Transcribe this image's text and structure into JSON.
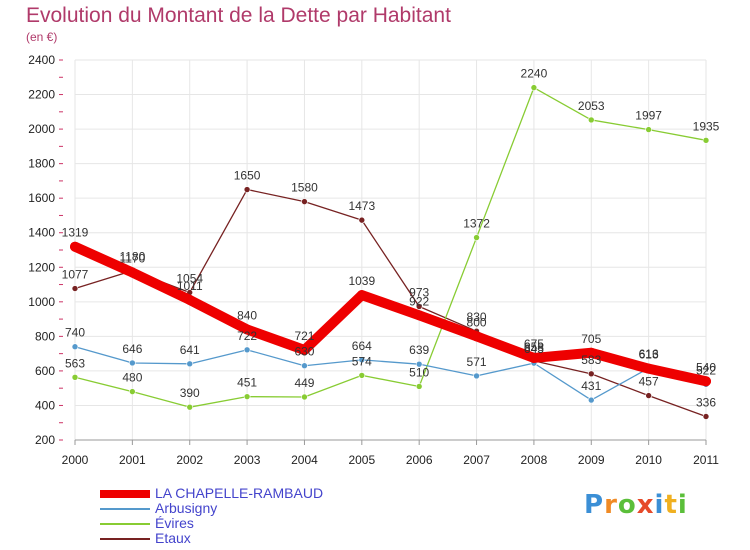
{
  "header": {
    "title": "Evolution du Montant de la Dette par Habitant",
    "subtitle": "(en €)"
  },
  "logo": {
    "text": "Proxiti"
  },
  "chart_data": {
    "type": "line",
    "title": "Evolution du Montant de la Dette par Habitant",
    "subtitle": "(en €)",
    "xlabel": "",
    "ylabel": "",
    "x": [
      "2000",
      "2001",
      "2002",
      "2003",
      "2004",
      "2005",
      "2006",
      "2007",
      "2008",
      "2009",
      "2010",
      "2011"
    ],
    "ylim": [
      200,
      2400
    ],
    "yticks": [
      200,
      400,
      600,
      800,
      1000,
      1200,
      1400,
      1600,
      1800,
      2000,
      2200,
      2400
    ],
    "grid": true,
    "legend_position": "bottom-left",
    "series": [
      {
        "name": "LA CHAPELLE-RAMBAUD",
        "color": "#ee0000",
        "values": [
          1319,
          1170,
          1011,
          840,
          721,
          1039,
          922,
          800,
          675,
          705,
          613,
          540
        ]
      },
      {
        "name": "Arbusigny",
        "color": "#5599cc",
        "values": [
          740,
          646,
          641,
          722,
          630,
          664,
          639,
          571,
          645,
          431,
          616,
          522
        ]
      },
      {
        "name": "Évires",
        "color": "#88cc33",
        "values": [
          563,
          480,
          390,
          451,
          449,
          574,
          510,
          1372,
          2240,
          2053,
          1997,
          1935
        ]
      },
      {
        "name": "Etaux",
        "color": "#772222",
        "values": [
          1077,
          1180,
          1054,
          1650,
          1580,
          1473,
          973,
          830,
          658,
          583,
          457,
          336
        ]
      }
    ]
  }
}
